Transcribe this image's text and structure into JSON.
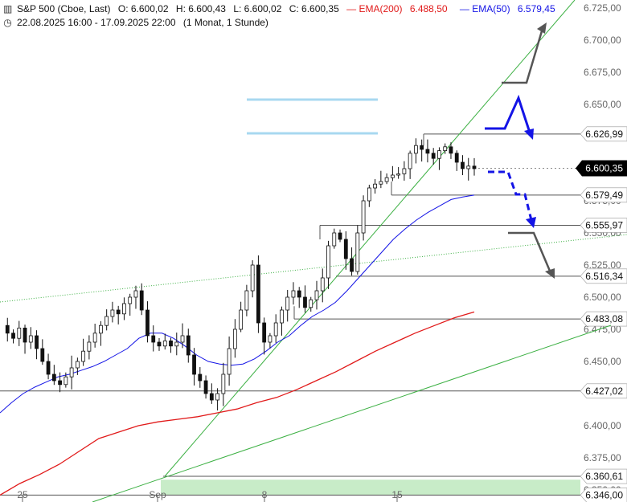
{
  "header": {
    "symbol": "S&P 500 (Cboe, Last)",
    "open": "O: 6.600,02",
    "high": "H: 6.600,43",
    "low": "L: 6.600,02",
    "close": "C: 6.600,35",
    "ema200": "EMA(200)",
    "ema200_value": "6.488,50",
    "ema50": "EMA(50)",
    "ema50_value": "6.579,45",
    "range": "22.08.2025 16:00 - 17.09.2025 22:00",
    "interval": "(1 Monat, 1 Stunde)"
  },
  "chart_data": {
    "type": "line",
    "ylim": [
      6340,
      6730
    ],
    "y_ticks": [
      "6.725,00",
      "6.700,00",
      "6.675,00",
      "6.650,00",
      "6.625,00",
      "6.600,00",
      "6.575,00",
      "6.550,00",
      "6.525,00",
      "6.500,00",
      "6.475,00",
      "6.450,00",
      "6.425,00",
      "6.400,00",
      "6.375,00",
      "6.350,00"
    ],
    "y_tick_values": [
      6725,
      6700,
      6675,
      6650,
      6625,
      6600,
      6575,
      6550,
      6525,
      6500,
      6475,
      6450,
      6425,
      6400,
      6375,
      6350
    ],
    "x_tick_labels": [
      "25",
      "Sep",
      "8",
      "15"
    ],
    "horizontal_levels": [
      {
        "label": "6.626,99",
        "value": 6626.99
      },
      {
        "label": "6.579,49",
        "value": 6579.49
      },
      {
        "label": "6.555,97",
        "value": 6555.97
      },
      {
        "label": "6.516,34",
        "value": 6516.34
      },
      {
        "label": "6.483,08",
        "value": 6483.08
      },
      {
        "label": "6.427,02",
        "value": 6427.02
      },
      {
        "label": "6.360,61",
        "value": 6360.61
      },
      {
        "label": "6.346,00",
        "value": 6346.0
      }
    ],
    "last_price": {
      "label": "6.600,35",
      "value": 6600.35
    },
    "price_path": [
      6478,
      6472,
      6468,
      6476,
      6465,
      6470,
      6460,
      6450,
      6440,
      6435,
      6432,
      6438,
      6445,
      6450,
      6458,
      6465,
      6472,
      6478,
      6485,
      6490,
      6487,
      6495,
      6500,
      6505,
      6490,
      6470,
      6465,
      6462,
      6466,
      6462,
      6465,
      6470,
      6455,
      6440,
      6435,
      6425,
      6420,
      6425,
      6440,
      6460,
      6475,
      6490,
      6505,
      6525,
      6480,
      6465,
      6470,
      6480,
      6490,
      6500,
      6505,
      6500,
      6492,
      6498,
      6505,
      6515,
      6540,
      6550,
      6545,
      6530,
      6520,
      6550,
      6575,
      6585,
      6588,
      6590,
      6593,
      6595,
      6596,
      6600,
      6612,
      6618,
      6615,
      6612,
      6608,
      6614,
      6617,
      6612,
      6605,
      6600,
      6602,
      6600
    ],
    "ema50_path": [
      6410,
      6418,
      6425,
      6430,
      6434,
      6438,
      6440,
      6443,
      6446,
      6450,
      6455,
      6460,
      6468,
      6472,
      6472,
      6468,
      6462,
      6455,
      6450,
      6448,
      6447,
      6448,
      6452,
      6458,
      6465,
      6470,
      6478,
      6485,
      6490,
      6496,
      6505,
      6515,
      6525,
      6535,
      6545,
      6553,
      6560,
      6566,
      6571,
      6576,
      6578,
      6579.45
    ],
    "ema200_path": [
      6346,
      6355,
      6362,
      6370,
      6380,
      6390,
      6395,
      6400,
      6403,
      6405,
      6407,
      6410,
      6413,
      6418,
      6422,
      6428,
      6435,
      6442,
      6450,
      6458,
      6465,
      6472,
      6478,
      6484,
      6488.5
    ]
  },
  "colors": {
    "ema200": "#e11a1a",
    "ema50": "#1414e6",
    "trend_green": "#3cb043",
    "level_gray": "#555555",
    "light_blue": "#a8d8f0",
    "zone_green": "#c8ecc8",
    "arrow_gray": "#555555",
    "arrow_blue": "#1414e6"
  }
}
